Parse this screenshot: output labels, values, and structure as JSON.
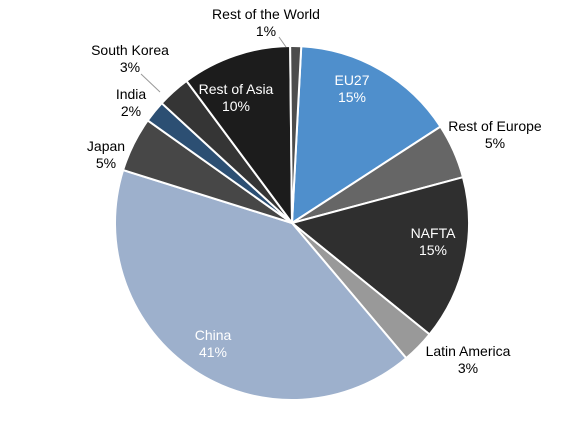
{
  "chart_data": {
    "type": "pie",
    "title": "",
    "colors": {
      "eu27": "#4f8fcc",
      "rest_of_europe": "#666666",
      "nafta": "#2f2f2f",
      "latin_america": "#999999",
      "china": "#9db0cc",
      "japan": "#474747",
      "india": "#2c4f73",
      "south_korea": "#353535",
      "rest_of_asia": "#1c1c1c",
      "rest_of_world": "#4d4d4d",
      "leader_line": "#999999"
    },
    "slices": [
      {
        "name": "EU27",
        "value": 15,
        "label": "15%",
        "color_key": "eu27",
        "text_color": "#ffffff",
        "inside": true
      },
      {
        "name": "Rest of Europe",
        "value": 5,
        "label": "5%",
        "color_key": "rest_of_europe",
        "text_color": "#000000",
        "inside": false
      },
      {
        "name": "NAFTA",
        "value": 15,
        "label": "15%",
        "color_key": "nafta",
        "text_color": "#ffffff",
        "inside": true
      },
      {
        "name": "Latin America",
        "value": 3,
        "label": "3%",
        "color_key": "latin_america",
        "text_color": "#000000",
        "inside": false
      },
      {
        "name": "China",
        "value": 41,
        "label": "41%",
        "color_key": "china",
        "text_color": "#ffffff",
        "inside": true
      },
      {
        "name": "Japan",
        "value": 5,
        "label": "5%",
        "color_key": "japan",
        "text_color": "#000000",
        "inside": false
      },
      {
        "name": "India",
        "value": 2,
        "label": "2%",
        "color_key": "india",
        "text_color": "#000000",
        "inside": false
      },
      {
        "name": "South Korea",
        "value": 3,
        "label": "3%",
        "color_key": "south_korea",
        "text_color": "#000000",
        "inside": false
      },
      {
        "name": "Rest of Asia",
        "value": 10,
        "label": "10%",
        "color_key": "rest_of_asia",
        "text_color": "#ffffff",
        "inside": true
      },
      {
        "name": "Rest of the World",
        "value": 1,
        "label": "1%",
        "color_key": "rest_of_world",
        "text_color": "#000000",
        "inside": false
      }
    ]
  }
}
